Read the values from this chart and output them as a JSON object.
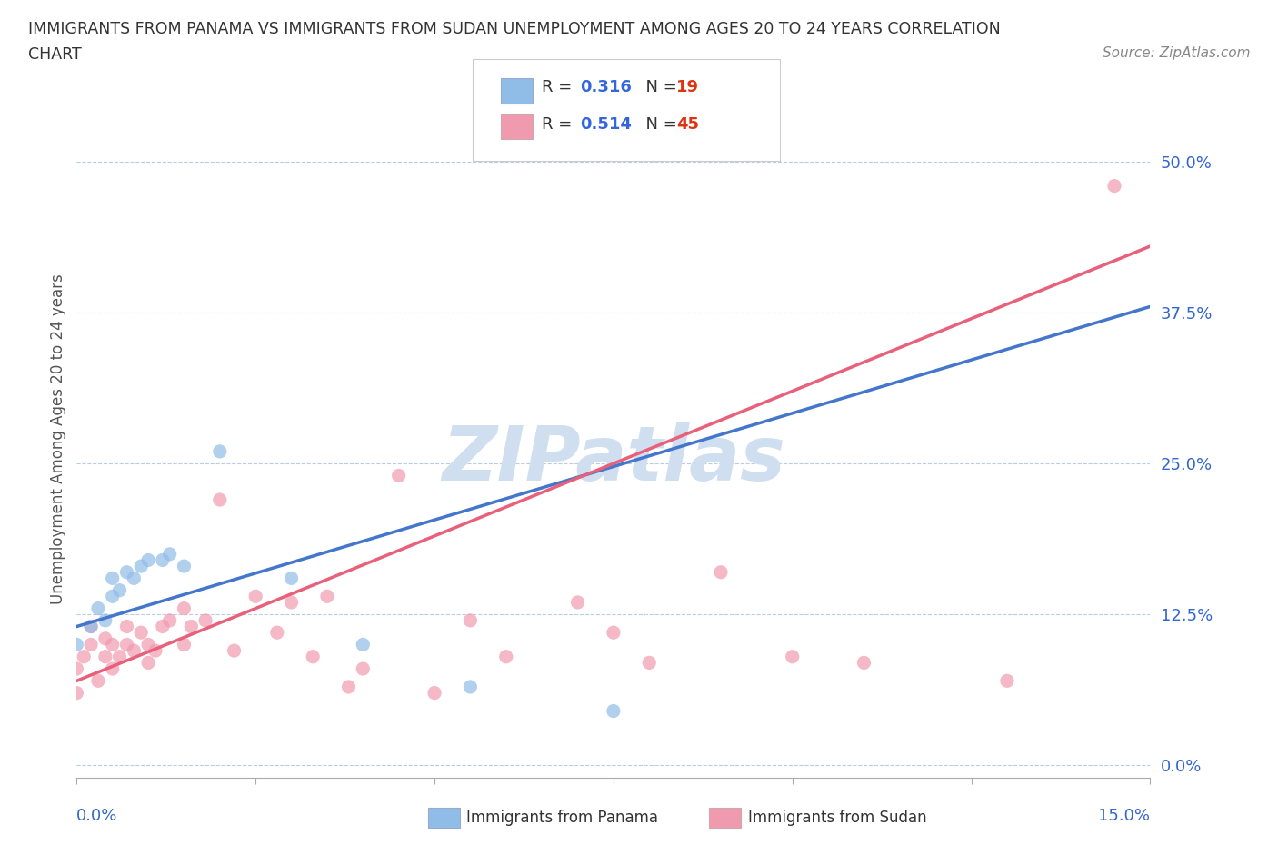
{
  "title_line1": "IMMIGRANTS FROM PANAMA VS IMMIGRANTS FROM SUDAN UNEMPLOYMENT AMONG AGES 20 TO 24 YEARS CORRELATION",
  "title_line2": "CHART",
  "source": "Source: ZipAtlas.com",
  "ylabel": "Unemployment Among Ages 20 to 24 years",
  "ytick_vals": [
    0.0,
    0.125,
    0.25,
    0.375,
    0.5
  ],
  "ytick_labels": [
    "0.0%",
    "12.5%",
    "25.0%",
    "37.5%",
    "50.0%"
  ],
  "xtick_left_label": "0.0%",
  "xtick_right_label": "15.0%",
  "xlim": [
    0.0,
    0.15
  ],
  "ylim": [
    -0.01,
    0.55
  ],
  "panama_color": "#90bce8",
  "sudan_color": "#f09ab0",
  "panama_line_color": "#4477cc",
  "sudan_line_color": "#e8607a",
  "watermark": "ZIPatlas",
  "watermark_color": "#d0dff0",
  "R_color": "#3366dd",
  "N_color": "#dd3311",
  "legend_panama_R": "0.316",
  "legend_panama_N": "19",
  "legend_sudan_R": "0.514",
  "legend_sudan_N": "45",
  "panama_x": [
    0.0,
    0.002,
    0.003,
    0.004,
    0.005,
    0.005,
    0.006,
    0.007,
    0.008,
    0.009,
    0.01,
    0.012,
    0.013,
    0.015,
    0.02,
    0.03,
    0.04,
    0.055,
    0.075
  ],
  "panama_y": [
    0.1,
    0.115,
    0.13,
    0.12,
    0.14,
    0.155,
    0.145,
    0.16,
    0.155,
    0.165,
    0.17,
    0.17,
    0.175,
    0.165,
    0.26,
    0.155,
    0.1,
    0.065,
    0.045
  ],
  "sudan_x": [
    0.0,
    0.0,
    0.001,
    0.002,
    0.002,
    0.003,
    0.004,
    0.004,
    0.005,
    0.005,
    0.006,
    0.007,
    0.007,
    0.008,
    0.009,
    0.01,
    0.01,
    0.011,
    0.012,
    0.013,
    0.015,
    0.015,
    0.016,
    0.018,
    0.02,
    0.022,
    0.025,
    0.028,
    0.03,
    0.033,
    0.035,
    0.038,
    0.04,
    0.045,
    0.05,
    0.055,
    0.06,
    0.07,
    0.075,
    0.08,
    0.09,
    0.1,
    0.11,
    0.13,
    0.145
  ],
  "sudan_y": [
    0.06,
    0.08,
    0.09,
    0.1,
    0.115,
    0.07,
    0.09,
    0.105,
    0.08,
    0.1,
    0.09,
    0.1,
    0.115,
    0.095,
    0.11,
    0.085,
    0.1,
    0.095,
    0.115,
    0.12,
    0.1,
    0.13,
    0.115,
    0.12,
    0.22,
    0.095,
    0.14,
    0.11,
    0.135,
    0.09,
    0.14,
    0.065,
    0.08,
    0.24,
    0.06,
    0.12,
    0.09,
    0.135,
    0.11,
    0.085,
    0.16,
    0.09,
    0.085,
    0.07,
    0.48
  ],
  "panama_line_x0": 0.0,
  "panama_line_x1": 0.15,
  "panama_line_y0": 0.115,
  "panama_line_y1": 0.38,
  "sudan_line_x0": 0.0,
  "sudan_line_x1": 0.15,
  "sudan_line_y0": 0.07,
  "sudan_line_y1": 0.43
}
